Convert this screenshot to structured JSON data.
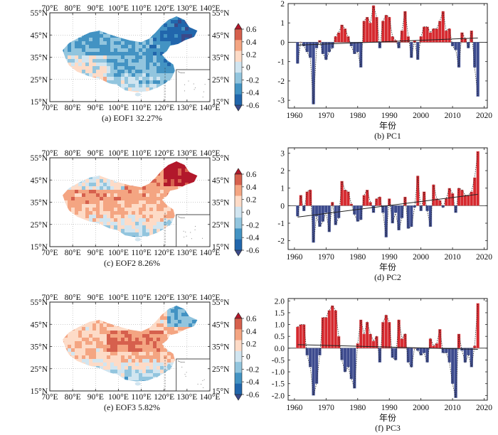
{
  "colorbar": {
    "ticks": [
      "0.6",
      "0.4",
      "0.2",
      "0",
      "-0.2",
      "-0.4",
      "-0.6"
    ],
    "colors": [
      "#b2182b",
      "#d6604d",
      "#f4a582",
      "#fddbc7",
      "#d1e5f0",
      "#92c5de",
      "#4393c3",
      "#2166ac",
      "#3b4a8a"
    ]
  },
  "map_axes": {
    "lon_labels": [
      "70°E",
      "80°E",
      "90°E",
      "100°E",
      "110°E",
      "120°E",
      "130°E",
      "140°E"
    ],
    "lat_labels": [
      "55°N",
      "45°N",
      "35°N",
      "25°N",
      "15°N"
    ]
  },
  "panels": [
    {
      "map_caption": "(a) EOF1  32.27%",
      "pc_caption": "(b) PC1",
      "pattern": "eof1"
    },
    {
      "map_caption": "(c) EOF2  8.26%",
      "pc_caption": "(d) PC2",
      "pattern": "eof2"
    },
    {
      "map_caption": "(e) EOF3  5.82%",
      "pc_caption": "(f) PC3",
      "pattern": "eof3"
    }
  ],
  "chart_data": [
    {
      "type": "bar",
      "xlabel": "年份",
      "ylabel": "",
      "xlim": [
        1958,
        2021
      ],
      "ylim": [
        -3.4,
        2.0
      ],
      "yticks": [
        -3,
        -2,
        -1,
        0,
        1,
        2
      ],
      "xticks": [
        1960,
        1970,
        1980,
        1990,
        2000,
        2010,
        2020
      ],
      "trend": [
        -0.15,
        0.22
      ],
      "x": [
        1961,
        1962,
        1963,
        1964,
        1965,
        1966,
        1967,
        1968,
        1969,
        1970,
        1971,
        1972,
        1973,
        1974,
        1975,
        1976,
        1977,
        1978,
        1979,
        1980,
        1981,
        1982,
        1983,
        1984,
        1985,
        1986,
        1987,
        1988,
        1989,
        1990,
        1991,
        1992,
        1993,
        1994,
        1995,
        1996,
        1997,
        1998,
        1999,
        2000,
        2001,
        2002,
        2003,
        2004,
        2005,
        2006,
        2007,
        2008,
        2009,
        2010,
        2011,
        2012,
        2013,
        2014,
        2015,
        2016,
        2017,
        2018
      ],
      "values": [
        -1.1,
        0.0,
        -0.2,
        -0.5,
        -0.8,
        -3.2,
        -0.3,
        0.1,
        -0.6,
        -0.9,
        -0.5,
        -0.3,
        0.3,
        0.5,
        0.9,
        0.7,
        0.3,
        -0.2,
        -0.6,
        -0.5,
        -1.3,
        1.1,
        1.3,
        1.0,
        1.9,
        1.3,
        -0.3,
        1.1,
        1.4,
        1.3,
        0.3,
        0.1,
        -0.3,
        0.6,
        1.6,
        0.3,
        -0.8,
        0.1,
        -0.9,
        0.3,
        0.8,
        0.8,
        0.5,
        0.7,
        0.7,
        1.1,
        1.6,
        0.6,
        0.7,
        -0.2,
        -0.4,
        -1.3,
        0.5,
        0.2,
        -0.3,
        0.6,
        -1.3,
        -2.8
      ]
    },
    {
      "type": "bar",
      "xlabel": "年份",
      "ylabel": "",
      "xlim": [
        1958,
        2021
      ],
      "ylim": [
        -2.5,
        3.3
      ],
      "yticks": [
        -2,
        -1,
        0,
        1,
        2,
        3
      ],
      "xticks": [
        1960,
        1970,
        1980,
        1990,
        2000,
        2010,
        2020
      ],
      "trend": [
        -0.65,
        0.65
      ],
      "x": [
        1961,
        1962,
        1963,
        1964,
        1965,
        1966,
        1967,
        1968,
        1969,
        1970,
        1971,
        1972,
        1973,
        1974,
        1975,
        1976,
        1977,
        1978,
        1979,
        1980,
        1981,
        1982,
        1983,
        1984,
        1985,
        1986,
        1987,
        1988,
        1989,
        1990,
        1991,
        1992,
        1993,
        1994,
        1995,
        1996,
        1997,
        1998,
        1999,
        2000,
        2001,
        2002,
        2003,
        2004,
        2005,
        2006,
        2007,
        2008,
        2009,
        2010,
        2011,
        2012,
        2013,
        2014,
        2015,
        2016,
        2017,
        2018
      ],
      "values": [
        -0.6,
        0.6,
        -0.3,
        0.8,
        0.9,
        -2.1,
        -0.6,
        -1.2,
        -0.9,
        -0.4,
        -1.5,
        0.2,
        -1.1,
        -0.7,
        1.4,
        0.9,
        0.8,
        0.1,
        -0.5,
        -0.9,
        -0.8,
        0.6,
        0.9,
        0.2,
        -0.4,
        0.4,
        0.5,
        -0.4,
        -1.8,
        0.4,
        -1.0,
        -0.4,
        -1.4,
        -0.7,
        0.5,
        -1.3,
        -1.2,
        -0.1,
        1.7,
        -0.3,
        0.8,
        -0.3,
        -1.2,
        1.2,
        0.4,
        0.3,
        -0.1,
        0.4,
        1.0,
        0.7,
        -0.4,
        1.0,
        0.9,
        0.6,
        0.6,
        0.8,
        1.6,
        3.1
      ]
    },
    {
      "type": "bar",
      "xlabel": "年份",
      "ylabel": "",
      "xlim": [
        1958,
        2021
      ],
      "ylim": [
        -2.2,
        2.1
      ],
      "yticks": [
        -2.0,
        -1.5,
        -1.0,
        -0.5,
        0,
        0.5,
        1.0,
        1.5,
        2.0
      ],
      "xticks": [
        1960,
        1970,
        1980,
        1990,
        2000,
        2010,
        2020
      ],
      "trend": [
        0.15,
        -0.05
      ],
      "x": [
        1961,
        1962,
        1963,
        1964,
        1965,
        1966,
        1967,
        1968,
        1969,
        1970,
        1971,
        1972,
        1973,
        1974,
        1975,
        1976,
        1977,
        1978,
        1979,
        1980,
        1981,
        1982,
        1983,
        1984,
        1985,
        1986,
        1987,
        1988,
        1989,
        1990,
        1991,
        1992,
        1993,
        1994,
        1995,
        1996,
        1997,
        1998,
        1999,
        2000,
        2001,
        2002,
        2003,
        2004,
        2005,
        2006,
        2007,
        2008,
        2009,
        2010,
        2011,
        2012,
        2013,
        2014,
        2015,
        2016,
        2017,
        2018
      ],
      "values": [
        0.9,
        1.0,
        1.0,
        -0.3,
        -0.8,
        -2.0,
        -1.5,
        -0.3,
        1.3,
        1.3,
        1.6,
        1.8,
        1.6,
        0.5,
        -0.5,
        -1.0,
        -0.8,
        -1.3,
        -1.7,
        0.2,
        1.2,
        0.6,
        1.1,
        0.6,
        0.3,
        0.5,
        -0.6,
        1.1,
        1.4,
        1.1,
        -0.4,
        -0.5,
        1.2,
        0.4,
        0.6,
        -0.6,
        -0.8,
        0.0,
        -0.1,
        -0.3,
        -0.2,
        -0.6,
        0.4,
        0.1,
        0.2,
        0.8,
        -0.2,
        -0.2,
        -0.6,
        -1.5,
        -2.1,
        0.6,
        -0.1,
        -0.6,
        -0.3,
        -0.8,
        0.1,
        1.9
      ]
    }
  ]
}
